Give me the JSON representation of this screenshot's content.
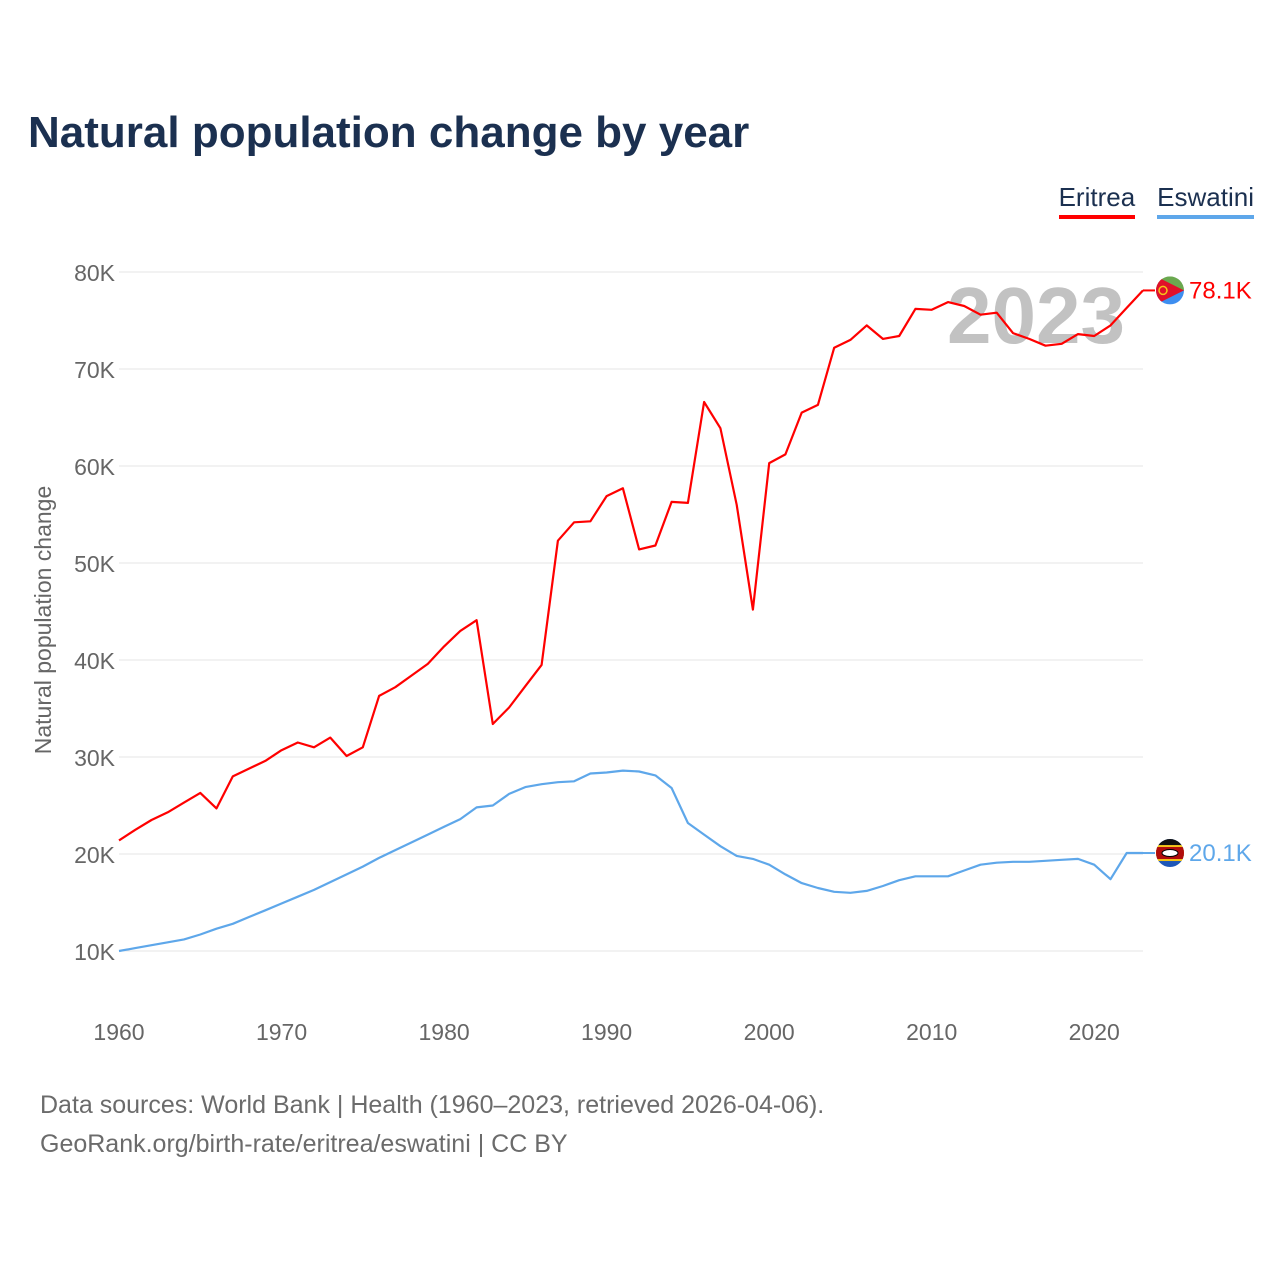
{
  "chart_data": {
    "type": "line",
    "title": "Natural population change by year",
    "xlabel": "",
    "ylabel": "Natural population change",
    "xlim": [
      1960,
      2023
    ],
    "ylim": [
      5000,
      85000
    ],
    "x_ticks": [
      1960,
      1970,
      1980,
      1990,
      2000,
      2010,
      2020
    ],
    "y_ticks": [
      10000,
      20000,
      30000,
      40000,
      50000,
      60000,
      70000,
      80000
    ],
    "y_tick_labels": [
      "10K",
      "20K",
      "30K",
      "40K",
      "50K",
      "60K",
      "70K",
      "80K"
    ],
    "grid": true,
    "legend_position": "top-right",
    "year_label": "2023",
    "x": [
      1960,
      1961,
      1962,
      1963,
      1964,
      1965,
      1966,
      1967,
      1968,
      1969,
      1970,
      1971,
      1972,
      1973,
      1974,
      1975,
      1976,
      1977,
      1978,
      1979,
      1980,
      1981,
      1982,
      1983,
      1984,
      1985,
      1986,
      1987,
      1988,
      1989,
      1990,
      1991,
      1992,
      1993,
      1994,
      1995,
      1996,
      1997,
      1998,
      1999,
      2000,
      2001,
      2002,
      2003,
      2004,
      2005,
      2006,
      2007,
      2008,
      2009,
      2010,
      2011,
      2012,
      2013,
      2014,
      2015,
      2016,
      2017,
      2018,
      2019,
      2020,
      2021,
      2022,
      2023
    ],
    "series": [
      {
        "name": "Eritrea",
        "color": "#ff0000",
        "end_label": "78.1K",
        "values": [
          21400,
          22500,
          23500,
          24300,
          25300,
          26300,
          24700,
          28000,
          28800,
          29600,
          30700,
          31500,
          31000,
          32000,
          30100,
          31000,
          36300,
          37200,
          38400,
          39600,
          41400,
          43000,
          44100,
          33400,
          35100,
          37300,
          39500,
          52300,
          54200,
          54300,
          56900,
          57700,
          51400,
          51800,
          56300,
          56200,
          66600,
          63900,
          56000,
          45200,
          60300,
          61200,
          65500,
          66300,
          72200,
          73000,
          74500,
          73100,
          73400,
          76200,
          76100,
          76900,
          76500,
          75600,
          75800,
          73700,
          73100,
          72400,
          72600,
          73600,
          73400,
          74500,
          76300,
          78100
        ]
      },
      {
        "name": "Eswatini",
        "color": "#5ea7ea",
        "end_label": "20.1K",
        "values": [
          10000,
          10300,
          10600,
          10900,
          11200,
          11700,
          12300,
          12800,
          13500,
          14200,
          14900,
          15600,
          16300,
          17100,
          17900,
          18700,
          19600,
          20400,
          21200,
          22000,
          22800,
          23600,
          24800,
          25000,
          26200,
          26900,
          27200,
          27400,
          27500,
          28300,
          28400,
          28600,
          28500,
          28100,
          26800,
          23200,
          22000,
          20800,
          19800,
          19500,
          18900,
          17900,
          17000,
          16500,
          16100,
          16000,
          16200,
          16700,
          17300,
          17700,
          17700,
          17700,
          18300,
          18900,
          19100,
          19200,
          19200,
          19300,
          19400,
          19500,
          18900,
          17400,
          20100,
          20100
        ]
      }
    ]
  },
  "footer": {
    "line1": "Data sources: World Bank | Health (1960–2023, retrieved 2026-04-06).",
    "line2": "GeoRank.org/birth-rate/eritrea/eswatini | CC BY"
  }
}
